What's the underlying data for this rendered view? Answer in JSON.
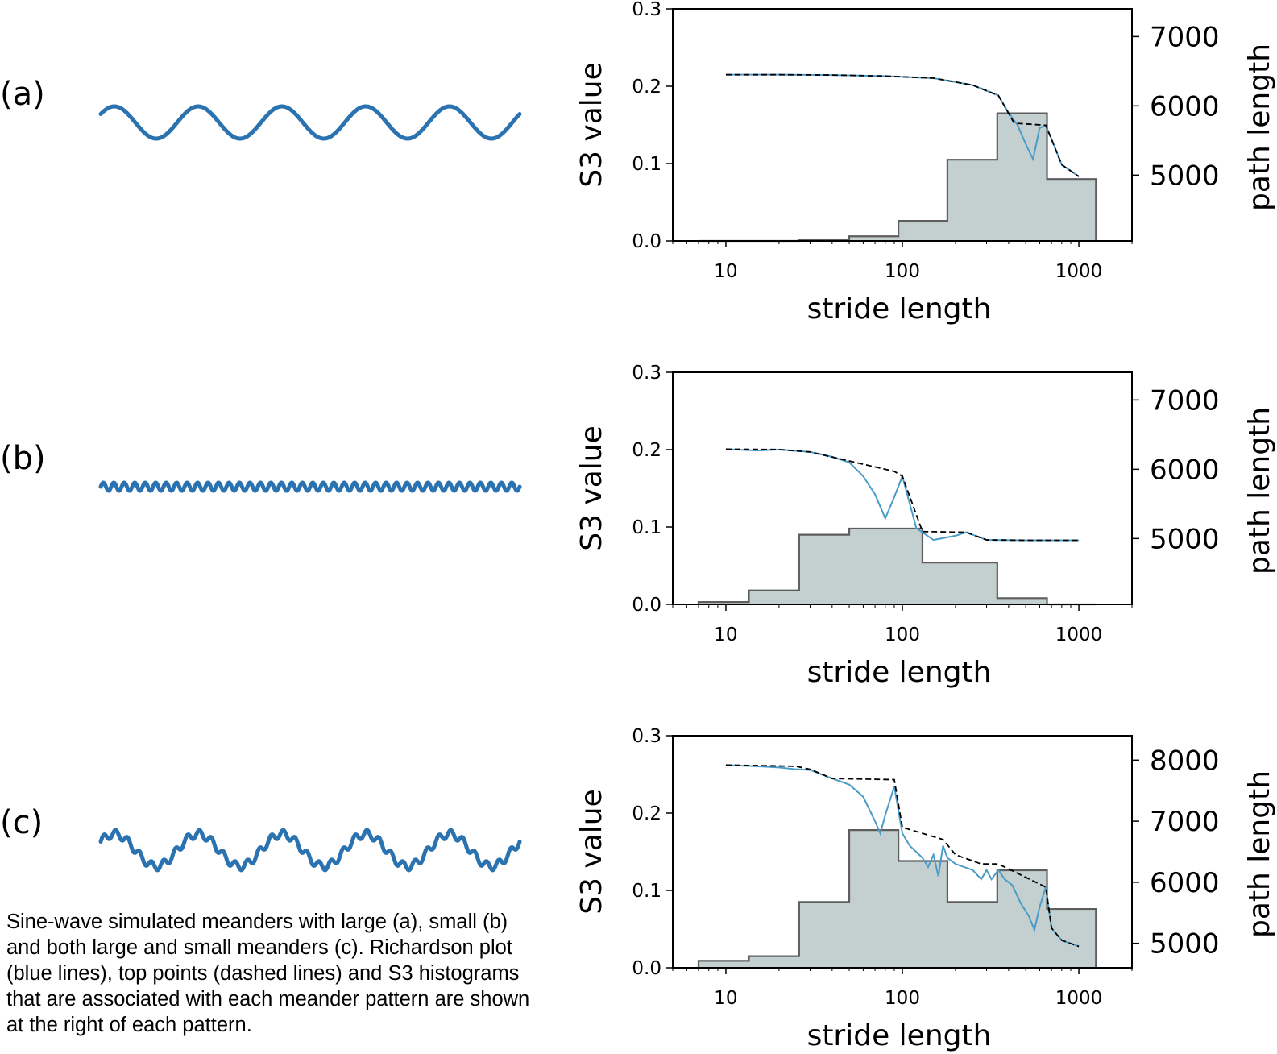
{
  "colors": {
    "meander": "#2b73b0",
    "richardson": "#4a9cc8",
    "top_points": "#000000",
    "hist_fill": "#c3d0cf",
    "hist_edge": "#5e5e5e",
    "axes": "#000000"
  },
  "caption_lines": [
    "Sine-wave simulated meanders with large (a), small (b)",
    "and both large and small meanders (c). Richardson plot",
    "(blue lines), top points (dashed lines) and S3 histograms",
    "that are associated with each meander pattern are shown",
    "at the right of each pattern."
  ],
  "panels": [
    {
      "label": "(a)",
      "pattern": "large-meanders",
      "large_cycles": 5,
      "small_cycles": 0
    },
    {
      "label": "(b)",
      "pattern": "small-meanders",
      "large_cycles": 0,
      "small_cycles": 40
    },
    {
      "label": "(c)",
      "pattern": "large-and-small-meanders",
      "large_cycles": 5,
      "small_cycles": 35
    }
  ],
  "chart_data": [
    {
      "type": "bar",
      "panel": "(a)",
      "xlabel": "stride length",
      "ylabel": "S3 value",
      "y2label": "path length",
      "xscale": "log",
      "xlim": [
        5,
        2000
      ],
      "ylim": [
        0,
        0.3
      ],
      "y2lim": [
        4050,
        7400
      ],
      "xticks": [
        10,
        100,
        1000
      ],
      "xtick_labels": [
        "10",
        "100",
        "1000"
      ],
      "yticks": [
        0.0,
        0.1,
        0.2,
        0.3
      ],
      "ytick_labels": [
        "0.0",
        "0.1",
        "0.2",
        "0.3"
      ],
      "y2ticks": [
        5000,
        6000,
        7000
      ],
      "y2tick_labels": [
        "5000",
        "6000",
        "7000"
      ],
      "histogram": {
        "bin_edges": [
          7,
          13.5,
          26,
          50,
          95,
          180,
          345,
          660,
          1250
        ],
        "values": [
          0.0,
          0.0,
          0.001,
          0.006,
          0.026,
          0.105,
          0.165,
          0.08
        ]
      },
      "richardson": {
        "x": [
          10,
          20,
          40,
          80,
          150,
          250,
          350,
          400,
          450,
          500,
          550,
          600,
          650,
          700,
          800,
          1000
        ],
        "y": [
          6450,
          6450,
          6445,
          6430,
          6400,
          6300,
          6150,
          5900,
          5720,
          5450,
          5230,
          5680,
          5720,
          5520,
          5150,
          4980
        ]
      },
      "top_points": {
        "x": [
          10,
          20,
          40,
          80,
          150,
          250,
          350,
          430,
          650,
          800,
          1000
        ],
        "y": [
          6450,
          6450,
          6445,
          6430,
          6400,
          6300,
          6150,
          5750,
          5720,
          5150,
          4980
        ]
      }
    },
    {
      "type": "bar",
      "panel": "(b)",
      "xlabel": "stride length",
      "ylabel": "S3 value",
      "y2label": "path length",
      "xscale": "log",
      "xlim": [
        5,
        2000
      ],
      "ylim": [
        0,
        0.3
      ],
      "y2lim": [
        4050,
        7400
      ],
      "xticks": [
        10,
        100,
        1000
      ],
      "xtick_labels": [
        "10",
        "100",
        "1000"
      ],
      "yticks": [
        0.0,
        0.1,
        0.2,
        0.3
      ],
      "ytick_labels": [
        "0.0",
        "0.1",
        "0.2",
        "0.3"
      ],
      "y2ticks": [
        5000,
        6000,
        7000
      ],
      "y2tick_labels": [
        "5000",
        "6000",
        "7000"
      ],
      "histogram": {
        "bin_edges": [
          7,
          13.5,
          26,
          50,
          130,
          345,
          660,
          1250
        ],
        "values": [
          0.003,
          0.018,
          0.09,
          0.098,
          0.054,
          0.008,
          0.0
        ]
      },
      "richardson": {
        "x": [
          10,
          15,
          20,
          30,
          40,
          50,
          60,
          70,
          80,
          90,
          100,
          120,
          150,
          200,
          230,
          300,
          500,
          1000
        ],
        "y": [
          6290,
          6270,
          6285,
          6250,
          6180,
          6100,
          5900,
          5640,
          5290,
          5600,
          5900,
          5150,
          4980,
          5040,
          5090,
          4980,
          4975,
          4975
        ]
      },
      "top_points": {
        "x": [
          10,
          20,
          30,
          90,
          100,
          130,
          230,
          300,
          500,
          1000
        ],
        "y": [
          6290,
          6285,
          6250,
          5970,
          5900,
          5100,
          5090,
          4980,
          4975,
          4975
        ]
      }
    },
    {
      "type": "bar",
      "panel": "(c)",
      "xlabel": "stride length",
      "ylabel": "S3 value",
      "y2label": "path length",
      "xscale": "log",
      "xlim": [
        5,
        2000
      ],
      "ylim": [
        0,
        0.3
      ],
      "y2lim": [
        4600,
        8400
      ],
      "xticks": [
        10,
        100,
        1000
      ],
      "xtick_labels": [
        "10",
        "100",
        "1000"
      ],
      "yticks": [
        0.0,
        0.1,
        0.2,
        0.3
      ],
      "ytick_labels": [
        "0.0",
        "0.1",
        "0.2",
        "0.3"
      ],
      "y2ticks": [
        5000,
        6000,
        7000,
        8000
      ],
      "y2tick_labels": [
        "5000",
        "6000",
        "7000",
        "8000"
      ],
      "histogram": {
        "bin_edges": [
          7,
          13.5,
          26,
          50,
          95,
          180,
          345,
          660,
          1250
        ],
        "values": [
          0.009,
          0.015,
          0.085,
          0.178,
          0.138,
          0.085,
          0.126,
          0.076
        ]
      },
      "richardson": {
        "x": [
          10,
          15,
          20,
          25,
          30,
          40,
          50,
          60,
          70,
          75,
          80,
          90,
          100,
          110,
          130,
          140,
          150,
          160,
          170,
          180,
          200,
          250,
          280,
          300,
          320,
          350,
          380,
          420,
          470,
          520,
          560,
          600,
          650,
          700,
          800,
          1000
        ],
        "y": [
          7920,
          7900,
          7880,
          7850,
          7840,
          7700,
          7600,
          7400,
          7000,
          6800,
          7100,
          7570,
          6800,
          6600,
          6400,
          6250,
          6450,
          6100,
          6600,
          6400,
          6300,
          6200,
          6050,
          6200,
          6050,
          6200,
          6050,
          5950,
          5650,
          5450,
          5220,
          5600,
          5920,
          5250,
          5050,
          4950
        ]
      },
      "top_points": {
        "x": [
          10,
          25,
          30,
          40,
          90,
          100,
          170,
          200,
          280,
          350,
          650,
          700,
          800,
          1000
        ],
        "y": [
          7920,
          7900,
          7850,
          7700,
          7680,
          6900,
          6700,
          6450,
          6300,
          6300,
          5920,
          5250,
          5050,
          4950
        ]
      }
    }
  ]
}
